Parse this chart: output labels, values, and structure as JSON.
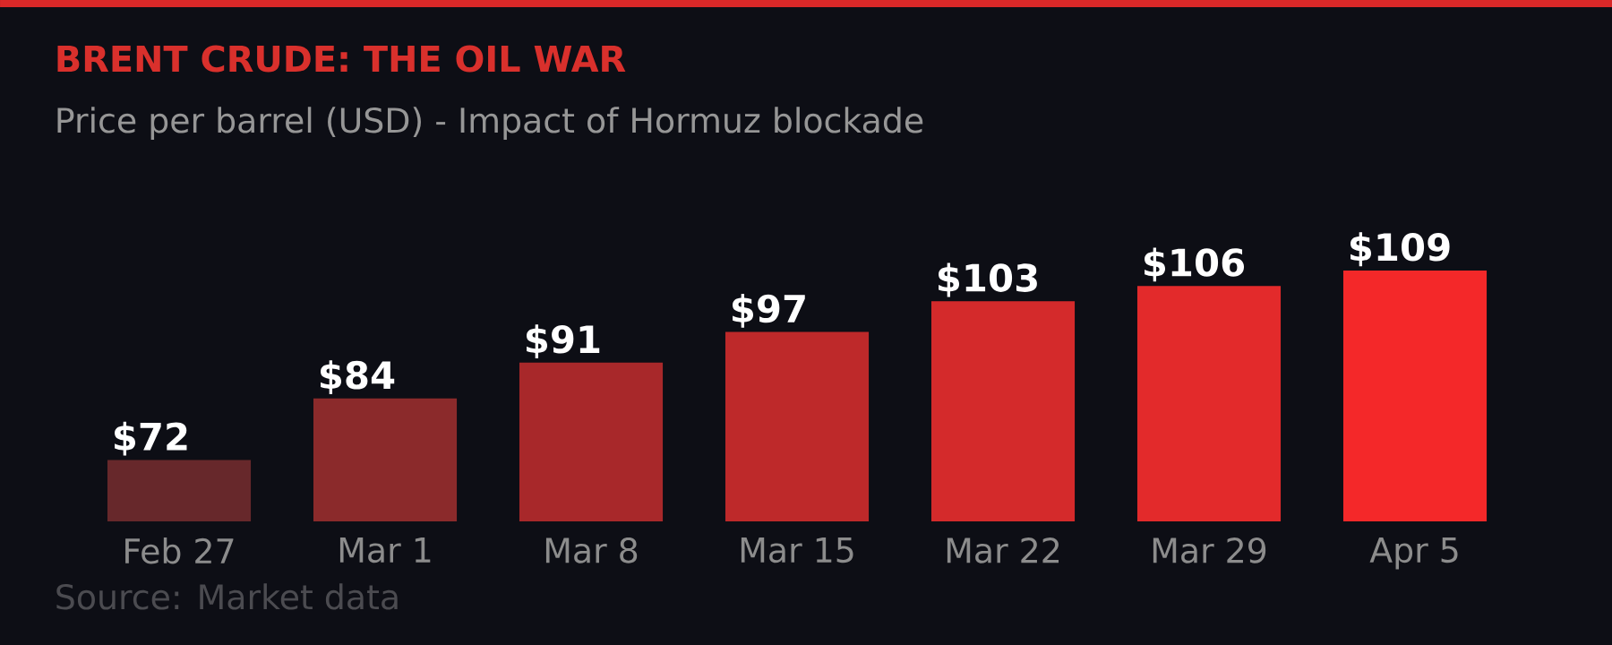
{
  "chart_data": {
    "type": "bar",
    "title": "BRENT CRUDE: THE OIL WAR",
    "subtitle": "Price per barrel (USD) - Impact of Hormuz blockade",
    "categories": [
      "Feb 27",
      "Mar 1",
      "Mar 8",
      "Mar 15",
      "Mar 22",
      "Mar 29",
      "Apr 5"
    ],
    "values": [
      72,
      84,
      91,
      97,
      103,
      106,
      109
    ],
    "value_labels": [
      "$72",
      "$84",
      "$91",
      "$97",
      "$103",
      "$106",
      "$109"
    ],
    "colors": [
      "#67282b",
      "#8b2a2b",
      "#a8282a",
      "#be292a",
      "#d42a2b",
      "#e32a2b",
      "#f42829"
    ],
    "ylim": [
      60,
      109
    ],
    "tick_labels": "x",
    "grid": false,
    "annotations": [
      "Source: Market data"
    ]
  }
}
